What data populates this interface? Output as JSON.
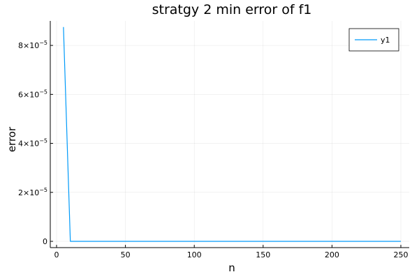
{
  "chart_data": {
    "type": "line",
    "title": "stratgy 2 min error of f1",
    "xlabel": "n",
    "ylabel": "error",
    "xlim": [
      0,
      250
    ],
    "ylim": [
      0,
      9e-05
    ],
    "x_ticks": [
      0,
      50,
      100,
      150,
      200,
      250
    ],
    "x_tick_labels": [
      "0",
      "50",
      "100",
      "150",
      "200",
      "250"
    ],
    "y_ticks": [
      0,
      2e-05,
      4e-05,
      6e-05,
      8e-05
    ],
    "y_tick_labels": [
      {
        "base": "0",
        "exp": ""
      },
      {
        "base": "2×10",
        "exp": "−5"
      },
      {
        "base": "4×10",
        "exp": "−5"
      },
      {
        "base": "6×10",
        "exp": "−5"
      },
      {
        "base": "8×10",
        "exp": "−5"
      }
    ],
    "grid": true,
    "legend": {
      "position": "top-right",
      "entries": [
        "y1"
      ]
    },
    "series": [
      {
        "name": "y1",
        "color": "#009af9",
        "x": [
          5,
          10,
          15,
          20,
          25,
          30,
          35,
          40,
          45,
          50,
          55,
          60,
          65,
          70,
          75,
          80,
          85,
          90,
          95,
          100,
          105,
          110,
          115,
          120,
          125,
          130,
          135,
          140,
          145,
          150,
          155,
          160,
          165,
          170,
          175,
          180,
          185,
          190,
          195,
          200,
          205,
          210,
          215,
          220,
          225,
          230,
          235,
          240,
          245,
          250
        ],
        "y": [
          8.75e-05,
          0,
          0,
          0,
          0,
          0,
          0,
          0,
          0,
          0,
          0,
          0,
          0,
          0,
          0,
          0,
          0,
          0,
          0,
          0,
          0,
          0,
          0,
          0,
          0,
          0,
          0,
          0,
          0,
          0,
          0,
          0,
          0,
          0,
          0,
          0,
          0,
          0,
          0,
          0,
          0,
          0,
          0,
          0,
          0,
          0,
          0,
          0,
          0,
          0
        ]
      }
    ]
  }
}
